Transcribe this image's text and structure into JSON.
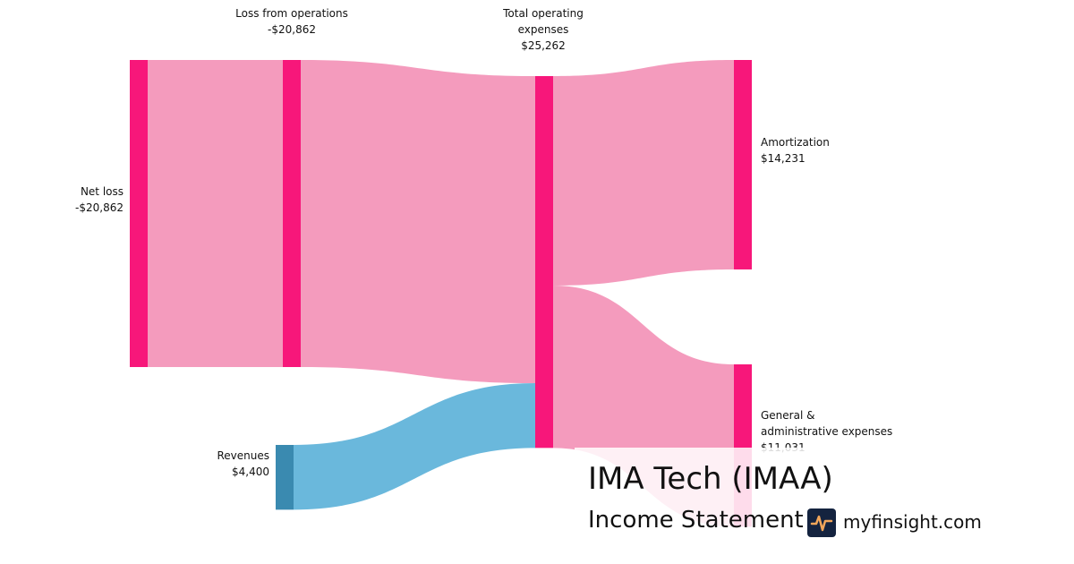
{
  "chart_data": {
    "type": "sankey",
    "title": "IMA Tech (IMAA)",
    "subtitle": "Income Statement",
    "source": "myfinsight.com",
    "nodes": [
      {
        "name": "Net loss",
        "value": -20862,
        "value_label": "-$20,862",
        "color": "#f7177a"
      },
      {
        "name": "Loss from operations",
        "value": -20862,
        "value_label": "-$20,862",
        "color": "#f7177a"
      },
      {
        "name": "Total operating expenses",
        "value": 25262,
        "value_label": "$25,262",
        "color": "#f7177a"
      },
      {
        "name": "Revenues",
        "value": 4400,
        "value_label": "$4,400",
        "color": "#3a8ab0"
      },
      {
        "name": "Amortization",
        "value": 14231,
        "value_label": "$14,231",
        "color": "#f7177a"
      },
      {
        "name": "General & administrative expenses",
        "value": 11031,
        "value_label": "$11,031",
        "color": "#f7177a"
      }
    ],
    "links": [
      {
        "source": 0,
        "target": 1,
        "value": 20862,
        "color": "#f49bbd"
      },
      {
        "source": 1,
        "target": 2,
        "value": 20862,
        "color": "#f49bbd"
      },
      {
        "source": 3,
        "target": 2,
        "value": 4400,
        "color": "#6ab8dc"
      },
      {
        "source": 2,
        "target": 4,
        "value": 14231,
        "color": "#f49bbd"
      },
      {
        "source": 2,
        "target": 5,
        "value": 11031,
        "color": "#f49bbd"
      }
    ]
  }
}
